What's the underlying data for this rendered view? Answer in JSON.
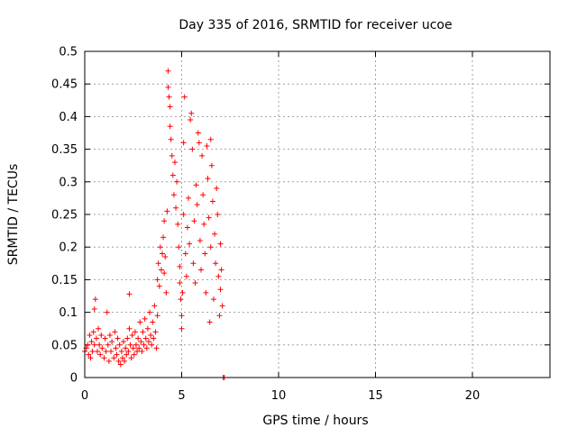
{
  "chart_data": {
    "type": "scatter",
    "title": "Day 335 of 2016, SRMTID for receiver ucoe",
    "xlabel": "GPS time / hours",
    "ylabel": "SRMTID / TECUs",
    "xlim": [
      0,
      24
    ],
    "ylim": [
      0,
      0.5
    ],
    "xticks": [
      0,
      5,
      10,
      15,
      20
    ],
    "xtick_labels": [
      "0",
      "5",
      "10",
      "15",
      "20"
    ],
    "yticks": [
      0,
      0.05,
      0.1,
      0.15,
      0.2,
      0.25,
      0.3,
      0.35,
      0.4,
      0.45,
      0.5
    ],
    "ytick_labels": [
      "0",
      "0.05",
      "0.1",
      "0.15",
      "0.2",
      "0.25",
      "0.3",
      "0.35",
      "0.4",
      "0.45",
      "0.5"
    ],
    "grid": true,
    "marker": "+",
    "series": [
      {
        "name": "SRMTID",
        "color": "#ff0000",
        "points": [
          [
            0.0,
            0.04
          ],
          [
            0.08,
            0.045
          ],
          [
            0.15,
            0.05
          ],
          [
            0.2,
            0.035
          ],
          [
            0.25,
            0.065
          ],
          [
            0.3,
            0.03
          ],
          [
            0.35,
            0.055
          ],
          [
            0.4,
            0.04
          ],
          [
            0.45,
            0.07
          ],
          [
            0.5,
            0.05
          ],
          [
            0.5,
            0.105
          ],
          [
            0.55,
            0.12
          ],
          [
            0.6,
            0.06
          ],
          [
            0.65,
            0.04
          ],
          [
            0.7,
            0.075
          ],
          [
            0.75,
            0.05
          ],
          [
            0.8,
            0.035
          ],
          [
            0.85,
            0.065
          ],
          [
            0.9,
            0.045
          ],
          [
            1.0,
            0.03
          ],
          [
            1.05,
            0.06
          ],
          [
            1.1,
            0.04
          ],
          [
            1.15,
            0.1
          ],
          [
            1.2,
            0.05
          ],
          [
            1.25,
            0.025
          ],
          [
            1.3,
            0.065
          ],
          [
            1.35,
            0.04
          ],
          [
            1.4,
            0.055
          ],
          [
            1.5,
            0.03
          ],
          [
            1.55,
            0.07
          ],
          [
            1.6,
            0.045
          ],
          [
            1.65,
            0.035
          ],
          [
            1.7,
            0.06
          ],
          [
            1.75,
            0.025
          ],
          [
            1.8,
            0.05
          ],
          [
            1.85,
            0.02
          ],
          [
            1.9,
            0.04
          ],
          [
            1.95,
            0.03
          ],
          [
            2.0,
            0.055
          ],
          [
            2.05,
            0.025
          ],
          [
            2.1,
            0.045
          ],
          [
            2.15,
            0.035
          ],
          [
            2.2,
            0.06
          ],
          [
            2.25,
            0.04
          ],
          [
            2.3,
            0.128
          ],
          [
            2.3,
            0.075
          ],
          [
            2.35,
            0.05
          ],
          [
            2.4,
            0.03
          ],
          [
            2.45,
            0.065
          ],
          [
            2.5,
            0.045
          ],
          [
            2.55,
            0.035
          ],
          [
            2.6,
            0.07
          ],
          [
            2.65,
            0.05
          ],
          [
            2.7,
            0.04
          ],
          [
            2.75,
            0.06
          ],
          [
            2.8,
            0.045
          ],
          [
            2.85,
            0.085
          ],
          [
            2.9,
            0.055
          ],
          [
            2.95,
            0.04
          ],
          [
            3.0,
            0.07
          ],
          [
            3.05,
            0.05
          ],
          [
            3.1,
            0.09
          ],
          [
            3.15,
            0.06
          ],
          [
            3.2,
            0.045
          ],
          [
            3.25,
            0.075
          ],
          [
            3.3,
            0.055
          ],
          [
            3.35,
            0.1
          ],
          [
            3.4,
            0.065
          ],
          [
            3.45,
            0.05
          ],
          [
            3.5,
            0.085
          ],
          [
            3.55,
            0.06
          ],
          [
            3.6,
            0.11
          ],
          [
            3.65,
            0.07
          ],
          [
            3.7,
            0.045
          ],
          [
            3.75,
            0.15
          ],
          [
            3.75,
            0.095
          ],
          [
            3.8,
            0.175
          ],
          [
            3.85,
            0.14
          ],
          [
            3.9,
            0.2
          ],
          [
            3.95,
            0.165
          ],
          [
            4.0,
            0.19
          ],
          [
            4.05,
            0.215
          ],
          [
            4.1,
            0.16
          ],
          [
            4.1,
            0.24
          ],
          [
            4.15,
            0.185
          ],
          [
            4.2,
            0.13
          ],
          [
            4.25,
            0.255
          ],
          [
            4.3,
            0.47
          ],
          [
            4.3,
            0.445
          ],
          [
            4.35,
            0.43
          ],
          [
            4.4,
            0.415
          ],
          [
            4.4,
            0.385
          ],
          [
            4.45,
            0.365
          ],
          [
            4.5,
            0.34
          ],
          [
            4.55,
            0.31
          ],
          [
            4.6,
            0.28
          ],
          [
            4.65,
            0.33
          ],
          [
            4.7,
            0.26
          ],
          [
            4.75,
            0.3
          ],
          [
            4.8,
            0.235
          ],
          [
            4.85,
            0.2
          ],
          [
            4.9,
            0.17
          ],
          [
            4.9,
            0.145
          ],
          [
            4.95,
            0.12
          ],
          [
            5.0,
            0.095
          ],
          [
            5.0,
            0.075
          ],
          [
            5.05,
            0.13
          ],
          [
            5.1,
            0.36
          ],
          [
            5.1,
            0.25
          ],
          [
            5.15,
            0.43
          ],
          [
            5.2,
            0.19
          ],
          [
            5.25,
            0.155
          ],
          [
            5.3,
            0.23
          ],
          [
            5.35,
            0.275
          ],
          [
            5.4,
            0.205
          ],
          [
            5.45,
            0.395
          ],
          [
            5.5,
            0.405
          ],
          [
            5.55,
            0.35
          ],
          [
            5.6,
            0.175
          ],
          [
            5.65,
            0.24
          ],
          [
            5.7,
            0.145
          ],
          [
            5.75,
            0.295
          ],
          [
            5.8,
            0.265
          ],
          [
            5.85,
            0.375
          ],
          [
            5.9,
            0.36
          ],
          [
            5.95,
            0.21
          ],
          [
            6.0,
            0.165
          ],
          [
            6.05,
            0.34
          ],
          [
            6.1,
            0.28
          ],
          [
            6.15,
            0.235
          ],
          [
            6.2,
            0.19
          ],
          [
            6.25,
            0.13
          ],
          [
            6.3,
            0.355
          ],
          [
            6.35,
            0.305
          ],
          [
            6.4,
            0.245
          ],
          [
            6.45,
            0.085
          ],
          [
            6.5,
            0.365
          ],
          [
            6.5,
            0.2
          ],
          [
            6.55,
            0.325
          ],
          [
            6.6,
            0.27
          ],
          [
            6.65,
            0.12
          ],
          [
            6.7,
            0.22
          ],
          [
            6.75,
            0.175
          ],
          [
            6.8,
            0.29
          ],
          [
            6.85,
            0.25
          ],
          [
            6.9,
            0.155
          ],
          [
            6.95,
            0.095
          ],
          [
            7.0,
            0.205
          ],
          [
            7.0,
            0.135
          ],
          [
            7.05,
            0.165
          ],
          [
            7.1,
            0.11
          ],
          [
            7.15,
            0.0
          ],
          [
            7.2,
            0.0
          ]
        ]
      }
    ]
  }
}
